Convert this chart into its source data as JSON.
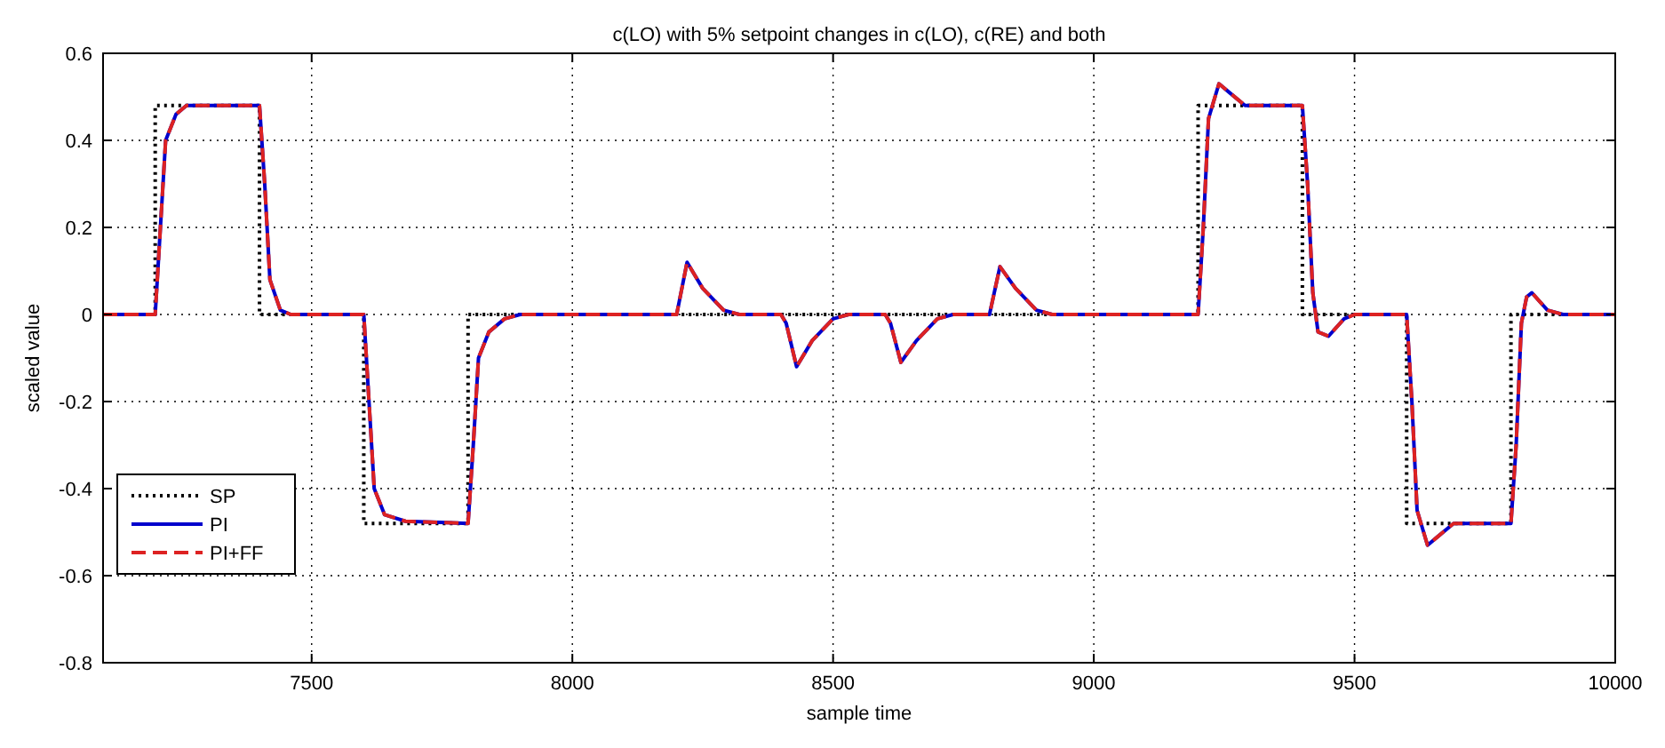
{
  "chart_data": {
    "type": "line",
    "title": "c(LO) with 5% setpoint changes in c(LO), c(RE) and both",
    "xlabel": "sample time",
    "ylabel": "scaled value",
    "xlim": [
      7100,
      10000
    ],
    "xticks": [
      7500,
      8000,
      8500,
      9000,
      9500,
      10000
    ],
    "ylim": [
      -0.8,
      0.6
    ],
    "yticks": [
      -0.8,
      -0.6,
      -0.4,
      -0.2,
      0,
      0.2,
      0.4,
      0.6
    ],
    "grid": true,
    "legend": "bottom left",
    "marker": "none",
    "series": [
      {
        "name": "SP",
        "color": "#000000",
        "line_style": "dotted",
        "x": [
          7100,
          7200,
          7200,
          7400,
          7400,
          7600,
          7600,
          7800,
          7800,
          9200,
          9200,
          9400,
          9400,
          9600,
          9600,
          9800,
          9800,
          10000
        ],
        "values": [
          0,
          0,
          0.48,
          0.48,
          0,
          0,
          -0.48,
          -0.48,
          0,
          0,
          0.48,
          0.48,
          0,
          0,
          -0.48,
          -0.48,
          0,
          0
        ]
      },
      {
        "name": "PI",
        "color": "#0000cc",
        "line_style": "solid",
        "x": [
          7100,
          7200,
          7210,
          7220,
          7240,
          7260,
          7400,
          7410,
          7420,
          7440,
          7460,
          7600,
          7610,
          7620,
          7640,
          7680,
          7800,
          7810,
          7820,
          7840,
          7870,
          7900,
          8200,
          8220,
          8250,
          8290,
          8320,
          8400,
          8410,
          8430,
          8460,
          8500,
          8530,
          8600,
          8610,
          8630,
          8660,
          8700,
          8730,
          8800,
          8820,
          8850,
          8890,
          8920,
          9200,
          9210,
          9220,
          9240,
          9260,
          9290,
          9400,
          9410,
          9420,
          9430,
          9450,
          9480,
          9500,
          9600,
          9610,
          9620,
          9640,
          9660,
          9690,
          9800,
          9810,
          9820,
          9830,
          9840,
          9870,
          9900,
          10000
        ],
        "values": [
          0,
          0,
          0.2,
          0.4,
          0.46,
          0.48,
          0.48,
          0.3,
          0.08,
          0.01,
          0,
          0,
          -0.2,
          -0.4,
          -0.46,
          -0.475,
          -0.48,
          -0.3,
          -0.1,
          -0.04,
          -0.01,
          0,
          0,
          0.12,
          0.06,
          0.01,
          0,
          0,
          -0.02,
          -0.12,
          -0.06,
          -0.01,
          0,
          0,
          -0.02,
          -0.11,
          -0.06,
          -0.01,
          0,
          0,
          0.11,
          0.06,
          0.01,
          0,
          0,
          0.2,
          0.45,
          0.53,
          0.51,
          0.48,
          0.48,
          0.3,
          0.05,
          -0.04,
          -0.05,
          -0.01,
          0,
          0,
          -0.2,
          -0.45,
          -0.53,
          -0.51,
          -0.48,
          -0.48,
          -0.3,
          -0.02,
          0.04,
          0.05,
          0.01,
          0,
          0
        ]
      },
      {
        "name": "PI+FF",
        "color": "#dd2222",
        "line_style": "dashed",
        "x": [
          7100,
          7200,
          7210,
          7220,
          7240,
          7260,
          7400,
          7410,
          7420,
          7440,
          7460,
          7600,
          7610,
          7620,
          7640,
          7680,
          7800,
          7810,
          7820,
          7840,
          7870,
          7900,
          8200,
          8220,
          8250,
          8290,
          8320,
          8400,
          8410,
          8430,
          8460,
          8500,
          8530,
          8600,
          8610,
          8630,
          8660,
          8700,
          8730,
          8800,
          8820,
          8850,
          8890,
          8920,
          9200,
          9210,
          9220,
          9240,
          9260,
          9290,
          9400,
          9410,
          9420,
          9430,
          9450,
          9480,
          9500,
          9600,
          9610,
          9620,
          9640,
          9660,
          9690,
          9800,
          9810,
          9820,
          9830,
          9840,
          9870,
          9900,
          10000
        ],
        "values": [
          0,
          0,
          0.2,
          0.4,
          0.46,
          0.48,
          0.48,
          0.3,
          0.08,
          0.01,
          0,
          0,
          -0.2,
          -0.4,
          -0.46,
          -0.475,
          -0.48,
          -0.3,
          -0.1,
          -0.04,
          -0.01,
          0,
          0,
          0.12,
          0.06,
          0.01,
          0,
          0,
          -0.02,
          -0.12,
          -0.06,
          -0.01,
          0,
          0,
          -0.02,
          -0.11,
          -0.06,
          -0.01,
          0,
          0,
          0.11,
          0.06,
          0.01,
          0,
          0,
          0.2,
          0.45,
          0.53,
          0.51,
          0.48,
          0.48,
          0.3,
          0.05,
          -0.04,
          -0.05,
          -0.01,
          0,
          0,
          -0.2,
          -0.45,
          -0.53,
          -0.51,
          -0.48,
          -0.48,
          -0.3,
          -0.02,
          0.04,
          0.05,
          0.01,
          0,
          0
        ]
      }
    ]
  }
}
